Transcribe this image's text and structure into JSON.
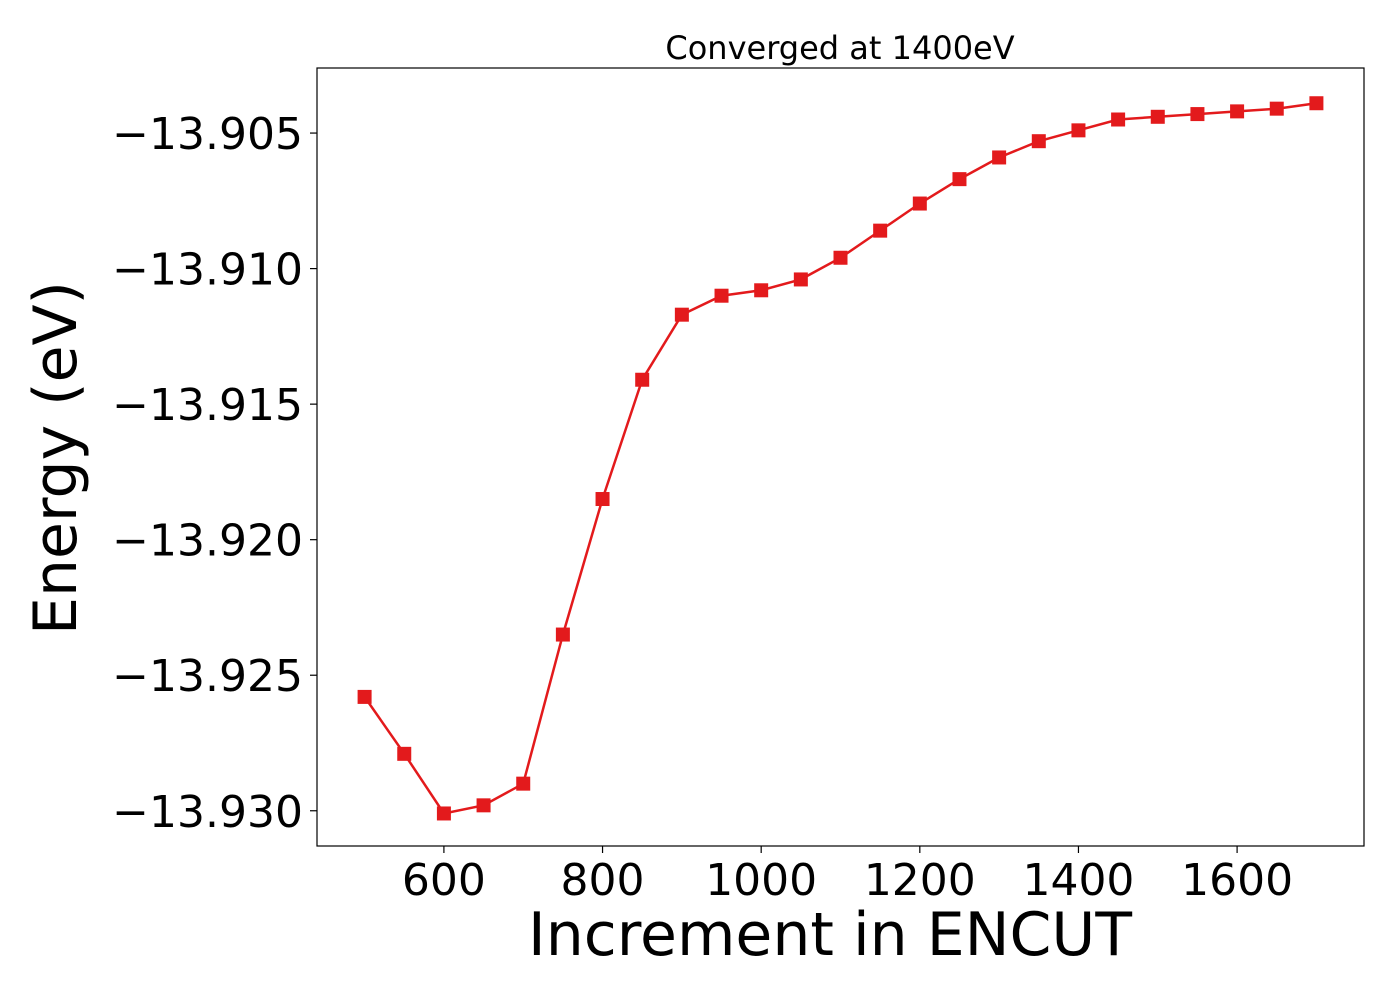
{
  "chart_data": {
    "type": "line",
    "title": "Converged at 1400eV",
    "xlabel": "Increment in ENCUT",
    "ylabel": "Energy (eV)",
    "xlim": [
      440,
      1760
    ],
    "ylim": [
      -13.9313,
      -13.9026
    ],
    "x_ticks": [
      600,
      800,
      1000,
      1200,
      1400,
      1600
    ],
    "x_tick_labels": [
      "600",
      "800",
      "1000",
      "1200",
      "1400",
      "1600"
    ],
    "y_ticks": [
      -13.905,
      -13.91,
      -13.915,
      -13.92,
      -13.925,
      -13.93
    ],
    "y_tick_labels": [
      "−13.905",
      "−13.910",
      "−13.915",
      "−13.920",
      "−13.925",
      "−13.930"
    ],
    "grid": false,
    "series": [
      {
        "color": "#e31a1c",
        "marker": "square",
        "x": [
          500,
          550,
          600,
          650,
          700,
          750,
          800,
          850,
          900,
          950,
          1000,
          1050,
          1100,
          1150,
          1200,
          1250,
          1300,
          1350,
          1400,
          1450,
          1500,
          1550,
          1600,
          1650,
          1700
        ],
        "y": [
          -13.9258,
          -13.9279,
          -13.9301,
          -13.9298,
          -13.929,
          -13.9235,
          -13.9185,
          -13.9141,
          -13.9117,
          -13.911,
          -13.9108,
          -13.9104,
          -13.9096,
          -13.9086,
          -13.9076,
          -13.9067,
          -13.9059,
          -13.9053,
          -13.9049,
          -13.9045,
          -13.9044,
          -13.9043,
          -13.9042,
          -13.9041,
          -13.9039
        ]
      }
    ]
  }
}
